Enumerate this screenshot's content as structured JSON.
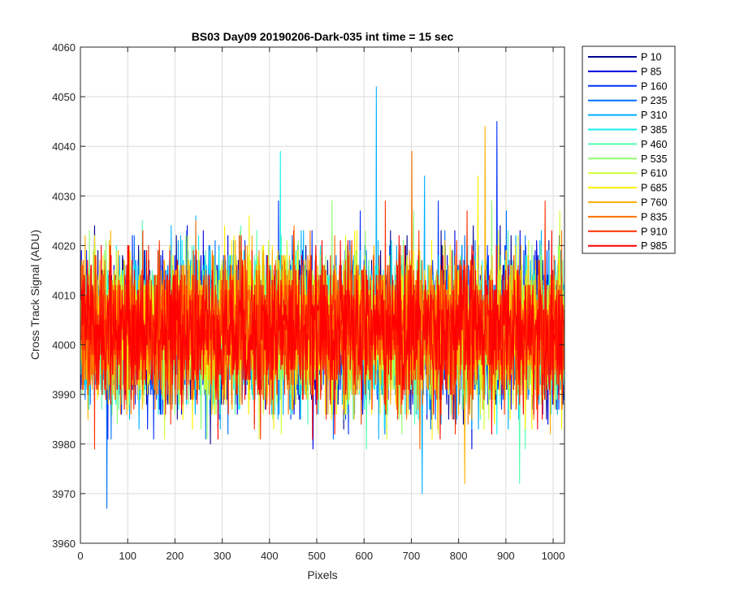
{
  "chart_data": {
    "type": "line",
    "title": "BS03 Day09 20190206-Dark-035 int time = 15 sec",
    "xlabel": "Pixels",
    "ylabel": "Cross Track Signal (ADU)",
    "xlim": [
      0,
      1024
    ],
    "ylim": [
      3960,
      4060
    ],
    "xticks": [
      0,
      100,
      200,
      300,
      400,
      500,
      600,
      700,
      800,
      900,
      1000
    ],
    "yticks": [
      3960,
      3970,
      3980,
      3990,
      4000,
      4010,
      4020,
      4030,
      4040,
      4050,
      4060
    ],
    "grid": true,
    "legend_location": "outside-top-right",
    "n_points": 1024,
    "noise_model": {
      "mean": 4003,
      "typical_range": [
        3985,
        4022
      ],
      "observed_min": 3967,
      "observed_max": 4052
    },
    "notable_points": [
      {
        "series": "P 310",
        "x": 625,
        "y": 4052
      },
      {
        "series": "P 160",
        "x": 880,
        "y": 4045
      },
      {
        "series": "P 760",
        "x": 855,
        "y": 4044
      },
      {
        "series": "P 835",
        "x": 700,
        "y": 4039
      },
      {
        "series": "P 385",
        "x": 422,
        "y": 4039
      },
      {
        "series": "P 235",
        "x": 55,
        "y": 3967
      },
      {
        "series": "P 310",
        "x": 722,
        "y": 3970
      },
      {
        "series": "P 760",
        "x": 812,
        "y": 3972
      },
      {
        "series": "P 460",
        "x": 928,
        "y": 3972
      }
    ],
    "series": [
      {
        "name": "P 10",
        "color": "#00008F"
      },
      {
        "name": "P 85",
        "color": "#0000DF"
      },
      {
        "name": "P 160",
        "color": "#0030FF"
      },
      {
        "name": "P 235",
        "color": "#0070FF"
      },
      {
        "name": "P 310",
        "color": "#00AFFF"
      },
      {
        "name": "P 385",
        "color": "#10EFEF"
      },
      {
        "name": "P 460",
        "color": "#50FFAF"
      },
      {
        "name": "P 535",
        "color": "#8FFF70"
      },
      {
        "name": "P 610",
        "color": "#CFFF30"
      },
      {
        "name": "P 685",
        "color": "#FFEF00"
      },
      {
        "name": "P 760",
        "color": "#FFAF00"
      },
      {
        "name": "P 835",
        "color": "#FF7000"
      },
      {
        "name": "P 910",
        "color": "#FF3000"
      },
      {
        "name": "P 985",
        "color": "#FF0000"
      }
    ]
  }
}
